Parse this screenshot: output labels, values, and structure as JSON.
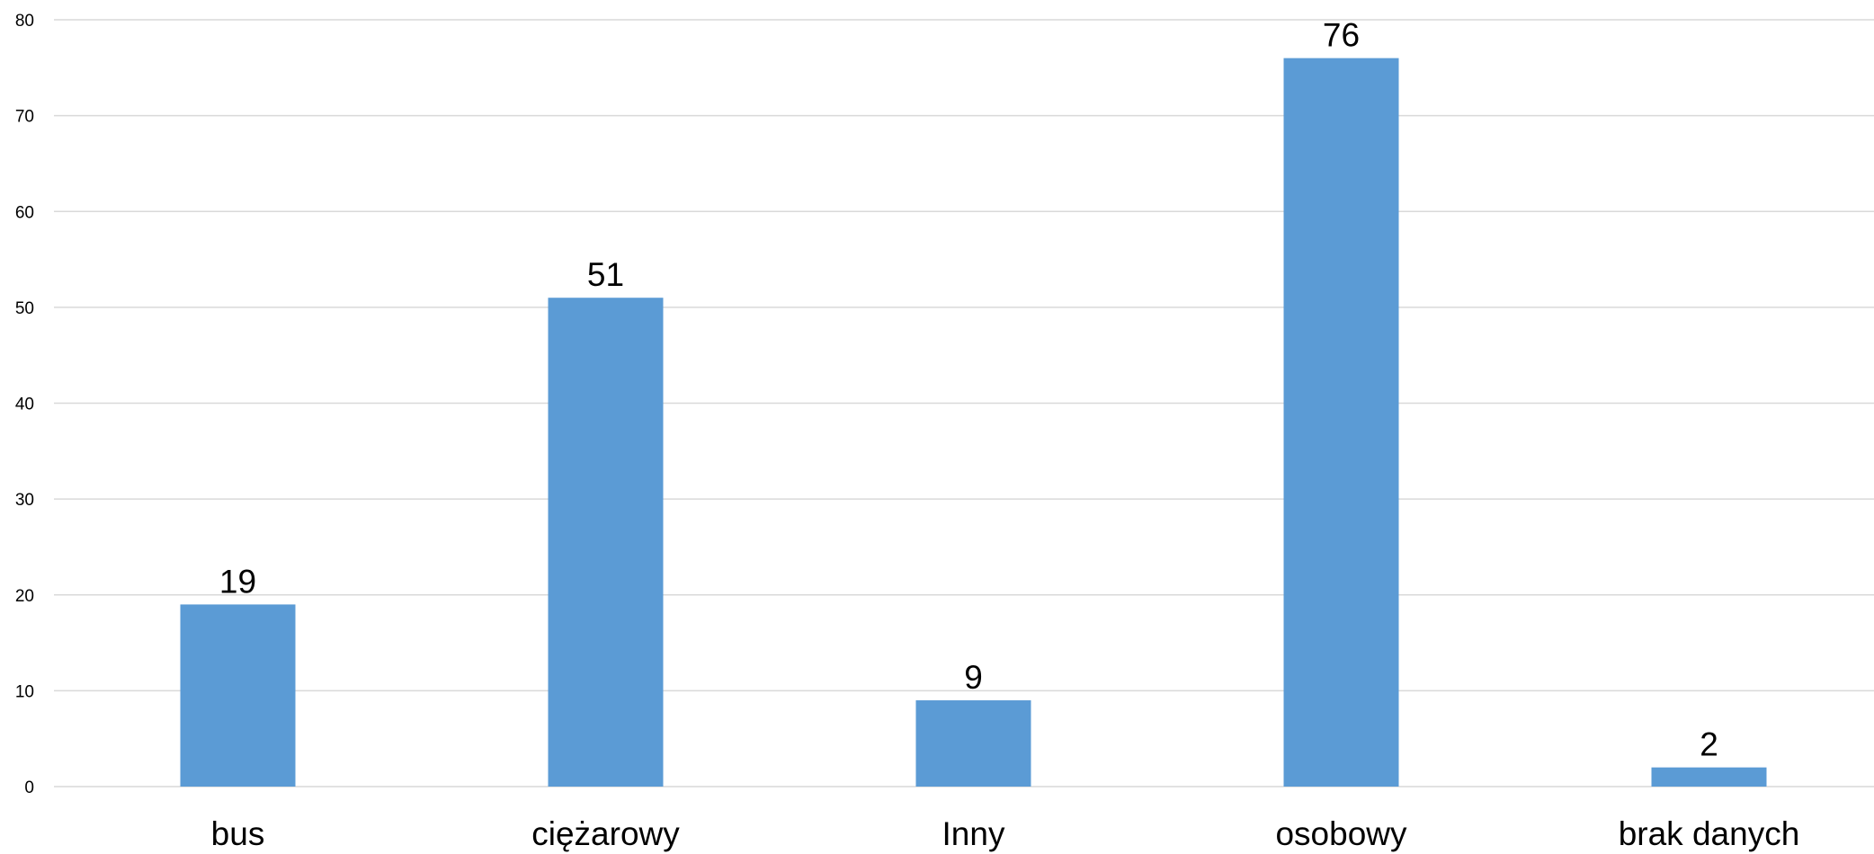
{
  "chart_data": {
    "type": "bar",
    "title": "",
    "xlabel": "",
    "ylabel": "",
    "categories": [
      "bus",
      "ciężarowy",
      "Inny",
      "osobowy",
      "brak danych"
    ],
    "values": [
      19,
      51,
      9,
      76,
      2
    ],
    "ylim": [
      0,
      80
    ],
    "yticks": [
      0,
      10,
      20,
      30,
      40,
      50,
      60,
      70,
      80
    ],
    "grid": true,
    "legend": "none",
    "data_labels": true,
    "bar_color": "#5b9bd5"
  }
}
